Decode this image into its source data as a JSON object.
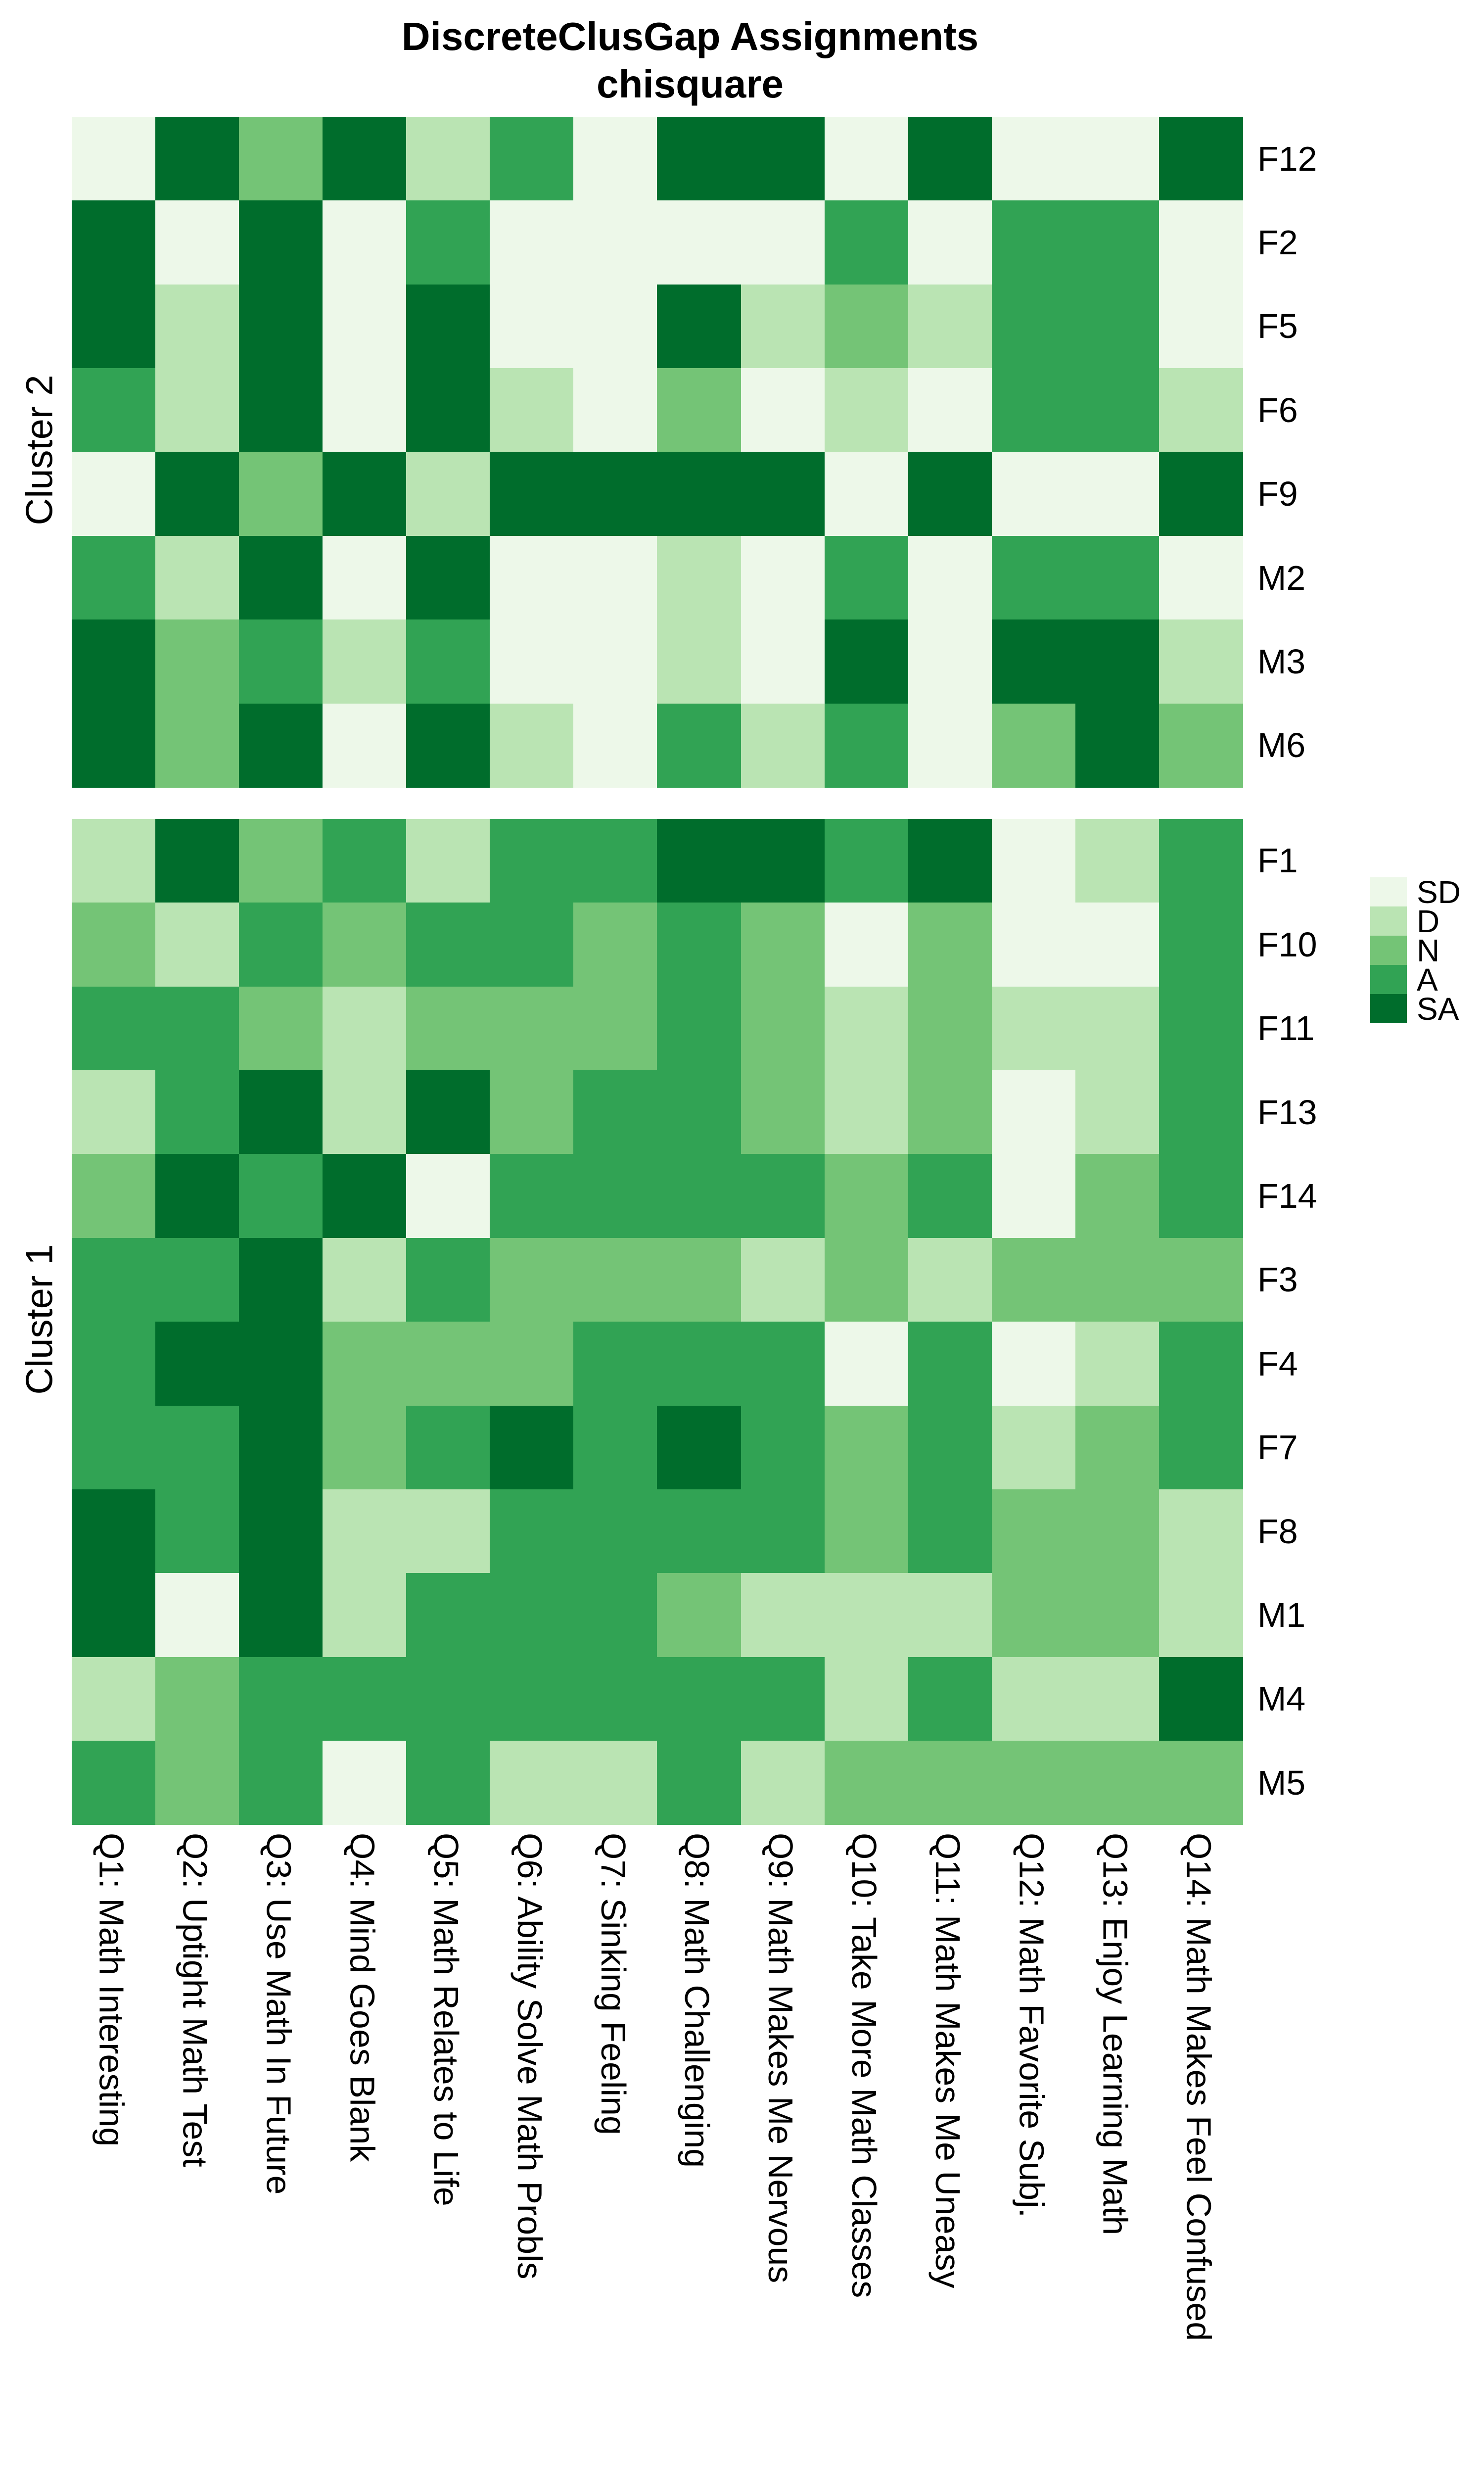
{
  "title": "DiscreteClusGap Assignments",
  "subtitle": "chisquare",
  "chart_data": {
    "type": "heatmap",
    "title": "DiscreteClusGap Assignments",
    "subtitle": "chisquare",
    "grid": false,
    "legend_position": "right",
    "legend": [
      {
        "label": "SD",
        "color": "#EDF8E9"
      },
      {
        "label": "D",
        "color": "#BAE4B3"
      },
      {
        "label": "N",
        "color": "#74C476"
      },
      {
        "label": "A",
        "color": "#31A354"
      },
      {
        "label": "SA",
        "color": "#006D2C"
      }
    ],
    "columns": [
      "Q1: Math Interesting",
      "Q2: Uptight Math Test",
      "Q3: Use Math In Future",
      "Q4: Mind Goes Blank",
      "Q5: Math Relates to Life",
      "Q6: Ability Solve Math Probls",
      "Q7: Sinking Feeling",
      "Q8: Math Challenging",
      "Q9: Math Makes Me Nervous",
      "Q10: Take More Math Classes",
      "Q11: Math Makes Me Uneasy",
      "Q12: Math Favorite Subj.",
      "Q13: Enjoy Learning Math",
      "Q14: Math Makes Feel Confused"
    ],
    "clusters": [
      {
        "name": "Cluster 2",
        "rows": [
          {
            "label": "F12",
            "values": [
              "SD",
              "SA",
              "N",
              "SA",
              "D",
              "A",
              "SD",
              "SA",
              "SA",
              "SD",
              "SA",
              "SD",
              "SD",
              "SA"
            ]
          },
          {
            "label": "F2",
            "values": [
              "SA",
              "SD",
              "SA",
              "SD",
              "A",
              "SD",
              "SD",
              "SD",
              "SD",
              "A",
              "SD",
              "A",
              "A",
              "SD"
            ]
          },
          {
            "label": "F5",
            "values": [
              "SA",
              "D",
              "SA",
              "SD",
              "SA",
              "SD",
              "SD",
              "SA",
              "D",
              "N",
              "D",
              "A",
              "A",
              "SD"
            ]
          },
          {
            "label": "F6",
            "values": [
              "A",
              "D",
              "SA",
              "SD",
              "SA",
              "D",
              "SD",
              "N",
              "SD",
              "D",
              "SD",
              "A",
              "A",
              "D"
            ]
          },
          {
            "label": "F9",
            "values": [
              "SD",
              "SA",
              "N",
              "SA",
              "D",
              "SA",
              "SA",
              "SA",
              "SA",
              "SD",
              "SA",
              "SD",
              "SD",
              "SA"
            ]
          },
          {
            "label": "M2",
            "values": [
              "A",
              "D",
              "SA",
              "SD",
              "SA",
              "SD",
              "SD",
              "D",
              "SD",
              "A",
              "SD",
              "A",
              "A",
              "SD"
            ]
          },
          {
            "label": "M3",
            "values": [
              "SA",
              "N",
              "A",
              "D",
              "A",
              "SD",
              "SD",
              "D",
              "SD",
              "SA",
              "SD",
              "SA",
              "SA",
              "D"
            ]
          },
          {
            "label": "M6",
            "values": [
              "SA",
              "N",
              "SA",
              "SD",
              "SA",
              "D",
              "SD",
              "A",
              "D",
              "A",
              "SD",
              "N",
              "SA",
              "N"
            ]
          }
        ]
      },
      {
        "name": "Cluster 1",
        "rows": [
          {
            "label": "F1",
            "values": [
              "D",
              "SA",
              "N",
              "A",
              "D",
              "A",
              "A",
              "SA",
              "SA",
              "A",
              "SA",
              "SD",
              "D",
              "A"
            ]
          },
          {
            "label": "F10",
            "values": [
              "N",
              "D",
              "A",
              "N",
              "A",
              "A",
              "N",
              "A",
              "N",
              "SD",
              "N",
              "SD",
              "SD",
              "A"
            ]
          },
          {
            "label": "F11",
            "values": [
              "A",
              "A",
              "N",
              "D",
              "N",
              "N",
              "N",
              "A",
              "N",
              "D",
              "N",
              "D",
              "D",
              "A"
            ]
          },
          {
            "label": "F13",
            "values": [
              "D",
              "A",
              "SA",
              "D",
              "SA",
              "N",
              "A",
              "A",
              "N",
              "D",
              "N",
              "SD",
              "D",
              "A"
            ]
          },
          {
            "label": "F14",
            "values": [
              "N",
              "SA",
              "A",
              "SA",
              "SD",
              "A",
              "A",
              "A",
              "A",
              "N",
              "A",
              "SD",
              "N",
              "A"
            ]
          },
          {
            "label": "F3",
            "values": [
              "A",
              "A",
              "SA",
              "D",
              "A",
              "N",
              "N",
              "N",
              "D",
              "N",
              "D",
              "N",
              "N",
              "N"
            ]
          },
          {
            "label": "F4",
            "values": [
              "A",
              "SA",
              "SA",
              "N",
              "N",
              "N",
              "A",
              "A",
              "A",
              "SD",
              "A",
              "SD",
              "D",
              "A"
            ]
          },
          {
            "label": "F7",
            "values": [
              "A",
              "A",
              "SA",
              "N",
              "A",
              "SA",
              "A",
              "SA",
              "A",
              "N",
              "A",
              "D",
              "N",
              "A"
            ]
          },
          {
            "label": "F8",
            "values": [
              "SA",
              "A",
              "SA",
              "D",
              "D",
              "A",
              "A",
              "A",
              "A",
              "N",
              "A",
              "N",
              "N",
              "D"
            ]
          },
          {
            "label": "M1",
            "values": [
              "SA",
              "SD",
              "SA",
              "D",
              "A",
              "A",
              "A",
              "N",
              "D",
              "D",
              "D",
              "N",
              "N",
              "D"
            ]
          },
          {
            "label": "M4",
            "values": [
              "D",
              "N",
              "A",
              "A",
              "A",
              "A",
              "A",
              "A",
              "A",
              "D",
              "A",
              "D",
              "D",
              "SA"
            ]
          },
          {
            "label": "M5",
            "values": [
              "A",
              "N",
              "A",
              "SD",
              "A",
              "D",
              "D",
              "A",
              "D",
              "N",
              "N",
              "N",
              "N",
              "N"
            ]
          }
        ]
      }
    ]
  }
}
